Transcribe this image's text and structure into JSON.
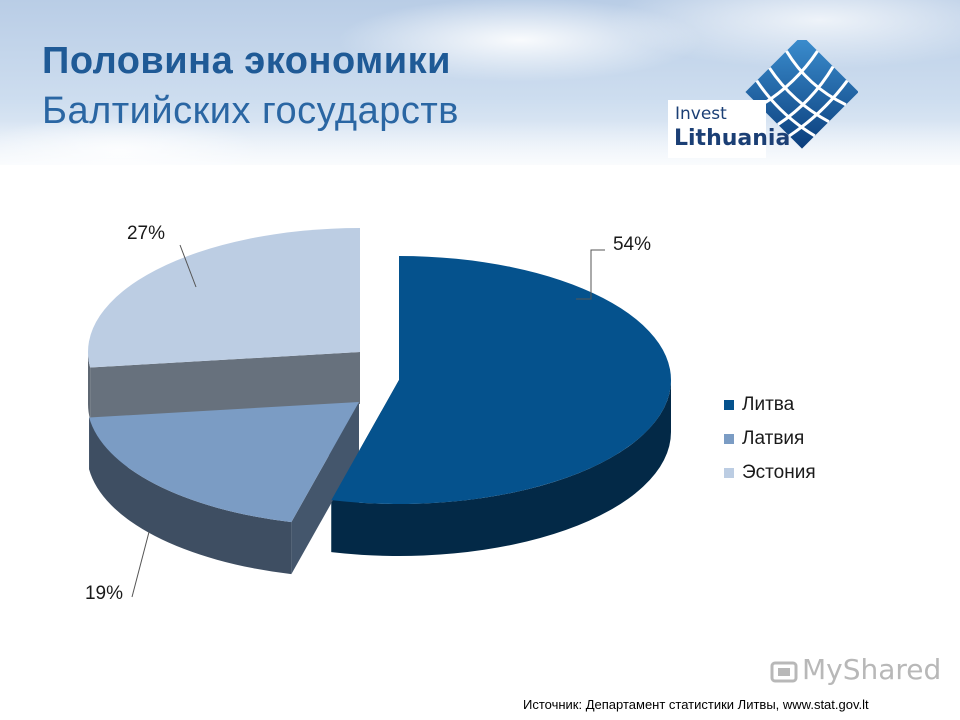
{
  "header": {
    "title_line1": "Половина экономики",
    "title_line2": "Балтийских государств",
    "logo_word1": "Invest",
    "logo_word2": "Lithuania",
    "title_color": "#1f5a96"
  },
  "chart_data": {
    "type": "pie",
    "style": "3d-exploded",
    "categories": [
      "Литва",
      "Латвия",
      "Эстония"
    ],
    "values": [
      54,
      19,
      27
    ],
    "labels": [
      "54%",
      "19%",
      "27%"
    ],
    "colors": [
      "#05528d",
      "#7b9cc4",
      "#bccde3"
    ],
    "legend_position": "right"
  },
  "source": "Источник: Департамент статистики Литвы, www.stat.gov.lt",
  "watermark": "MyShared"
}
